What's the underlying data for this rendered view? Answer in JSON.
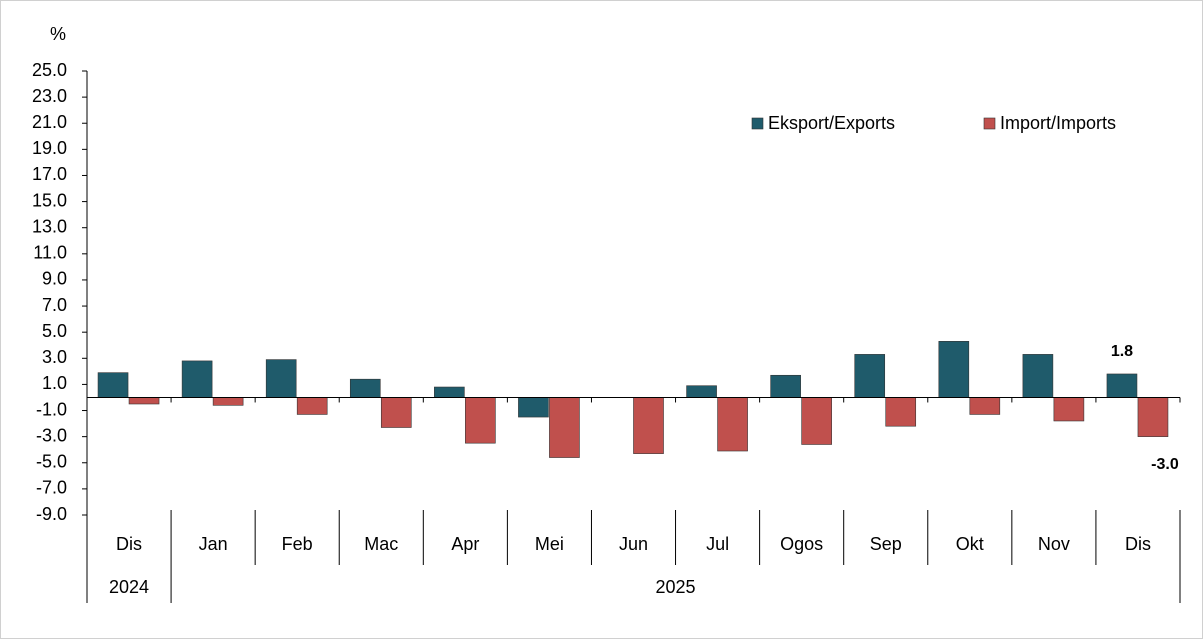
{
  "chart_data": {
    "type": "bar",
    "ylabel": "%",
    "categories": [
      "Dis",
      "Jan",
      "Feb",
      "Mac",
      "Apr",
      "Mei",
      "Jun",
      "Jul",
      "Ogos",
      "Sep",
      "Okt",
      "Nov",
      "Dis"
    ],
    "groups": [
      {
        "label": "2024",
        "span": 1
      },
      {
        "label": "2025",
        "span": 12
      }
    ],
    "series": [
      {
        "name": "Eksport/Exports",
        "color": "#1f5b6b",
        "values": [
          1.9,
          2.8,
          2.9,
          1.4,
          0.8,
          -1.5,
          0.0,
          0.9,
          1.7,
          3.3,
          4.3,
          3.3,
          1.8
        ],
        "value_labels": [
          null,
          null,
          null,
          null,
          null,
          null,
          null,
          null,
          null,
          null,
          null,
          null,
          "1.8"
        ]
      },
      {
        "name": "Import/Imports",
        "color": "#c0504d",
        "values": [
          -0.5,
          -0.6,
          -1.3,
          -2.3,
          -3.5,
          -4.6,
          -4.3,
          -4.1,
          -3.6,
          -2.2,
          -1.3,
          -1.8,
          -3.0
        ],
        "value_labels": [
          null,
          null,
          null,
          null,
          null,
          null,
          null,
          null,
          null,
          null,
          null,
          null,
          "-3.0"
        ]
      }
    ],
    "ylim": [
      -9,
      25
    ],
    "yticks": [
      {
        "value": 25,
        "label": "25.0"
      },
      {
        "value": 23,
        "label": "23.0"
      },
      {
        "value": 21,
        "label": "21.0"
      },
      {
        "value": 19,
        "label": "19.0"
      },
      {
        "value": 17,
        "label": "17.0"
      },
      {
        "value": 15,
        "label": "15.0"
      },
      {
        "value": 13,
        "label": "13.0"
      },
      {
        "value": 11,
        "label": "11.0"
      },
      {
        "value": 9,
        "label": "9.0"
      },
      {
        "value": 7,
        "label": "7.0"
      },
      {
        "value": 5,
        "label": "5.0"
      },
      {
        "value": 3,
        "label": "3.0"
      },
      {
        "value": 1,
        "label": "1.0"
      },
      {
        "value": -1,
        "label": "-1.0"
      },
      {
        "value": -3,
        "label": "-3.0"
      },
      {
        "value": -5,
        "label": "-5.0"
      },
      {
        "value": -7,
        "label": "-7.0"
      },
      {
        "value": -9,
        "label": "-9.0"
      }
    ],
    "grid": false,
    "legend": "top-right"
  }
}
